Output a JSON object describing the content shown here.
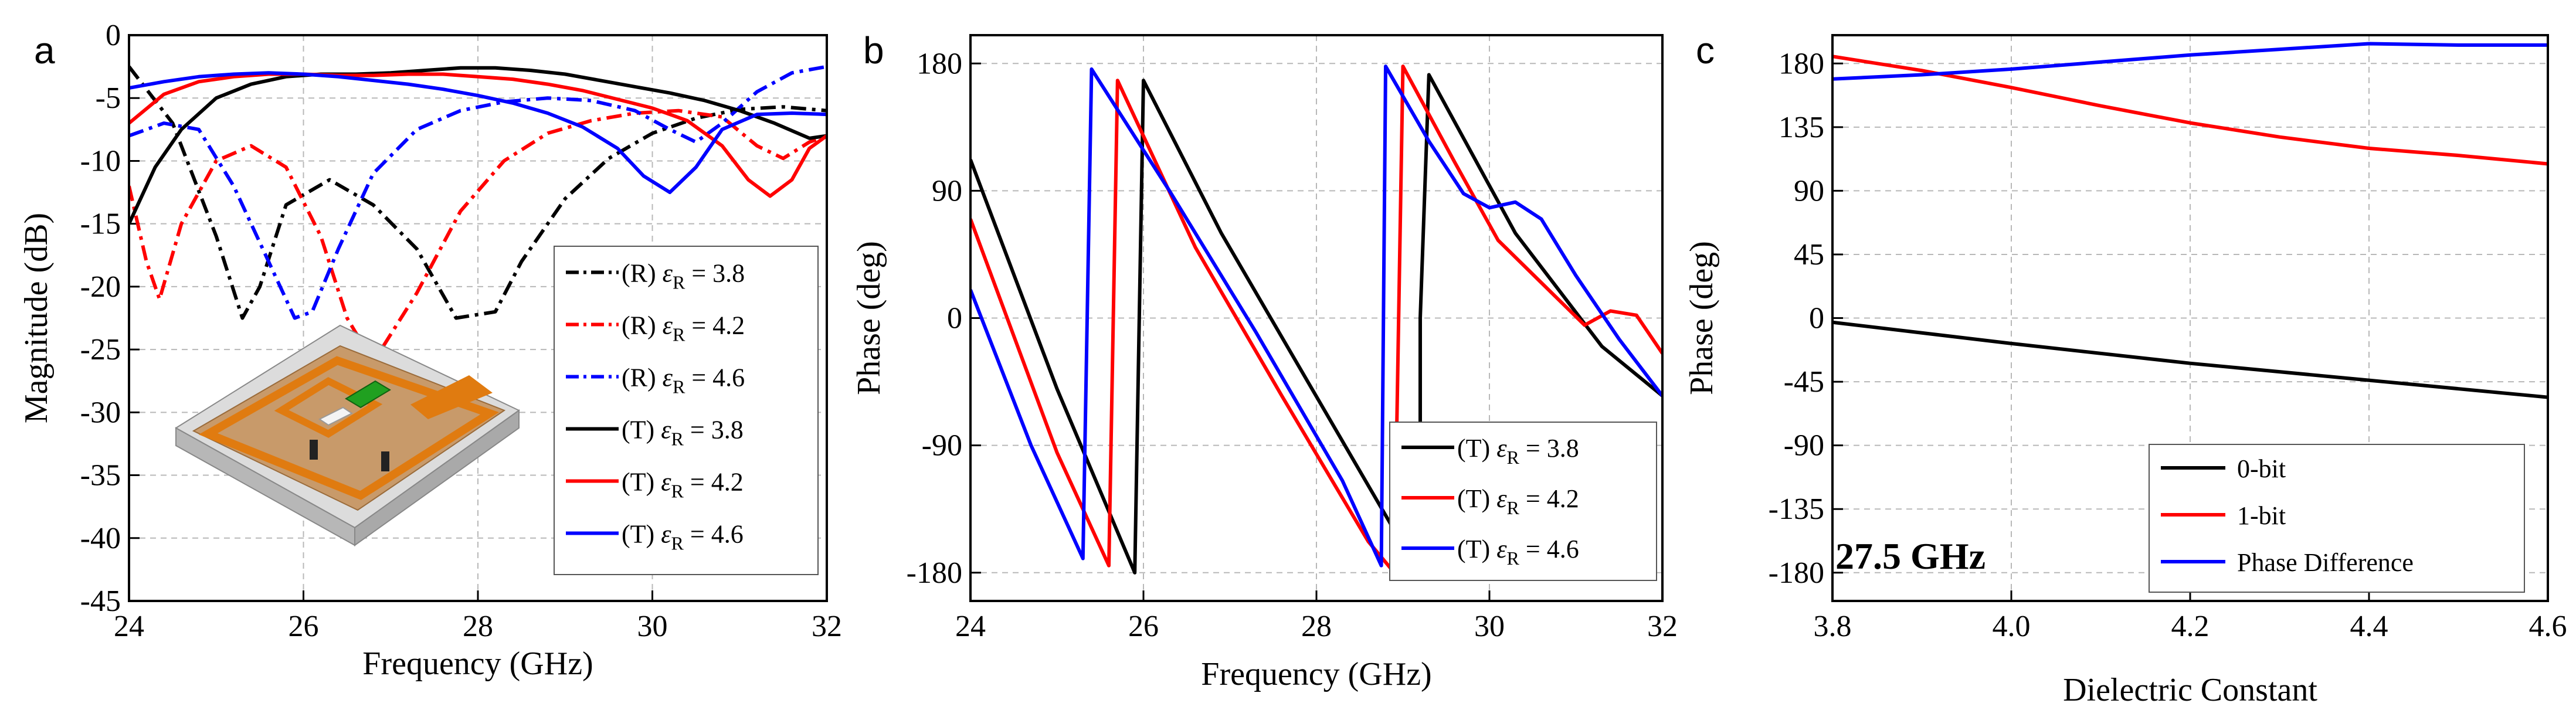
{
  "chart_data": [
    {
      "panel": "a",
      "type": "line",
      "xlabel": "Frequency (GHz)",
      "ylabel": "Magnitude (dB)",
      "xlim": [
        24,
        32
      ],
      "ylim": [
        -45,
        0
      ],
      "xticks": [
        "24",
        "26",
        "28",
        "30",
        "32"
      ],
      "yticks": [
        "0",
        "-5",
        "-10",
        "-15",
        "-20",
        "-25",
        "-30",
        "-35",
        "-40",
        "-45"
      ],
      "grid": true,
      "legend_position": "lower-right",
      "series": [
        {
          "name": "(R) εR = 3.8",
          "label_main": "(R) ",
          "eps_label": "ε",
          "eps_sub": "R",
          "label_value": " = 3.8",
          "color": "#000000",
          "dash": "dashdot",
          "x": [
            24.0,
            24.5,
            25.0,
            25.3,
            25.5,
            25.8,
            26.3,
            26.8,
            27.3,
            27.75,
            28.2,
            28.5,
            29.0,
            29.5,
            30.0,
            30.5,
            31.0,
            31.5,
            32.0
          ],
          "y": [
            -2.5,
            -7.0,
            -16.0,
            -22.5,
            -20.0,
            -13.5,
            -11.5,
            -13.5,
            -17.0,
            -22.5,
            -22.0,
            -18.0,
            -13.0,
            -9.8,
            -7.8,
            -6.6,
            -5.9,
            -5.7,
            -6.0
          ]
        },
        {
          "name": "(R) εR = 4.2",
          "label_main": "(R) ",
          "eps_label": "ε",
          "eps_sub": "R",
          "label_value": " = 4.2",
          "color": "#ff0000",
          "dash": "dashdot",
          "x": [
            24.0,
            24.2,
            24.35,
            24.6,
            25.0,
            25.4,
            25.8,
            26.2,
            26.5,
            26.8,
            27.3,
            27.8,
            28.3,
            28.8,
            29.3,
            29.8,
            30.3,
            30.8,
            31.2,
            31.5,
            31.8,
            32.0
          ],
          "y": [
            -12.0,
            -18.0,
            -21.0,
            -15.0,
            -10.0,
            -8.8,
            -10.5,
            -16.0,
            -22.5,
            -26.0,
            -20.5,
            -14.0,
            -10.0,
            -7.8,
            -6.8,
            -6.2,
            -6.0,
            -6.5,
            -8.8,
            -9.8,
            -8.5,
            -8.0
          ]
        },
        {
          "name": "(R) εR = 4.6",
          "label_main": "(R) ",
          "eps_label": "ε",
          "eps_sub": "R",
          "label_value": " = 4.6",
          "color": "#0000ff",
          "dash": "dashdot",
          "x": [
            24.0,
            24.4,
            24.8,
            25.2,
            25.6,
            25.9,
            26.1,
            26.4,
            26.8,
            27.3,
            27.8,
            28.3,
            28.8,
            29.3,
            29.8,
            30.2,
            30.5,
            30.8,
            31.2,
            31.6,
            32.0
          ],
          "y": [
            -8.0,
            -7.0,
            -7.5,
            -12.0,
            -18.0,
            -22.5,
            -22.0,
            -17.0,
            -11.0,
            -7.5,
            -6.0,
            -5.3,
            -5.0,
            -5.2,
            -6.0,
            -7.5,
            -8.5,
            -7.0,
            -4.5,
            -3.0,
            -2.5
          ]
        },
        {
          "name": "(T) εR = 3.8",
          "label_main": "(T) ",
          "eps_label": "ε",
          "eps_sub": "R",
          "label_value": " = 3.8",
          "color": "#000000",
          "dash": "solid",
          "x": [
            24.0,
            24.3,
            24.6,
            25.0,
            25.4,
            25.8,
            26.2,
            26.6,
            27.0,
            27.4,
            27.8,
            28.2,
            28.6,
            29.0,
            29.4,
            29.8,
            30.2,
            30.6,
            31.0,
            31.4,
            31.8,
            32.0
          ],
          "y": [
            -15.0,
            -10.5,
            -7.5,
            -5.0,
            -3.9,
            -3.3,
            -3.1,
            -3.1,
            -3.0,
            -2.8,
            -2.6,
            -2.6,
            -2.8,
            -3.1,
            -3.6,
            -4.1,
            -4.6,
            -5.2,
            -6.0,
            -7.0,
            -8.2,
            -8.0
          ]
        },
        {
          "name": "(T) εR = 4.2",
          "label_main": "(T) ",
          "eps_label": "ε",
          "eps_sub": "R",
          "label_value": " = 4.2",
          "color": "#ff0000",
          "dash": "solid",
          "x": [
            24.0,
            24.4,
            24.8,
            25.2,
            25.6,
            26.0,
            26.4,
            26.8,
            27.2,
            27.6,
            28.0,
            28.4,
            28.8,
            29.2,
            29.6,
            30.0,
            30.4,
            30.8,
            31.1,
            31.35,
            31.6,
            31.8,
            32.0
          ],
          "y": [
            -7.0,
            -4.7,
            -3.7,
            -3.3,
            -3.1,
            -3.1,
            -3.2,
            -3.2,
            -3.1,
            -3.1,
            -3.3,
            -3.5,
            -3.9,
            -4.4,
            -5.1,
            -5.8,
            -6.8,
            -8.8,
            -11.5,
            -12.8,
            -11.5,
            -9.0,
            -8.0
          ]
        },
        {
          "name": "(T) εR = 4.6",
          "label_main": "(T) ",
          "eps_label": "ε",
          "eps_sub": "R",
          "label_value": " = 4.6",
          "color": "#0000ff",
          "dash": "solid",
          "x": [
            24.0,
            24.4,
            24.8,
            25.2,
            25.6,
            26.0,
            26.4,
            26.8,
            27.2,
            27.6,
            28.0,
            28.4,
            28.8,
            29.2,
            29.6,
            29.9,
            30.2,
            30.5,
            30.8,
            31.2,
            31.6,
            32.0
          ],
          "y": [
            -4.2,
            -3.7,
            -3.3,
            -3.1,
            -3.0,
            -3.1,
            -3.3,
            -3.6,
            -3.9,
            -4.3,
            -4.8,
            -5.4,
            -6.2,
            -7.3,
            -9.0,
            -11.2,
            -12.5,
            -10.5,
            -7.5,
            -6.3,
            -6.2,
            -6.3
          ]
        }
      ]
    },
    {
      "panel": "b",
      "type": "line",
      "xlabel": "Frequency (GHz)",
      "ylabel": "Phase (deg)",
      "xlim": [
        24,
        32
      ],
      "ylim": [
        -200,
        200
      ],
      "xticks": [
        "24",
        "26",
        "28",
        "30",
        "32"
      ],
      "yticks": [
        "180",
        "90",
        "0",
        "-90",
        "-180"
      ],
      "grid": true,
      "legend_position": "lower-right",
      "series": [
        {
          "name": "(T) εR = 3.8",
          "label_main": "(T) ",
          "eps_label": "ε",
          "eps_sub": "R",
          "label_value": " = 3.8",
          "color": "#000000",
          "dash": "solid",
          "x": [
            24.0,
            25.0,
            25.9,
            25.9,
            26.0,
            26.9,
            27.9,
            28.9,
            29.2,
            29.2,
            29.3,
            30.3,
            31.3,
            32.0
          ],
          "y": [
            112,
            -50,
            -180,
            -180,
            168,
            60,
            -45,
            -150,
            -180,
            0,
            172,
            60,
            -20,
            -55
          ]
        },
        {
          "name": "(T) εR = 4.2",
          "label_main": "(T) ",
          "eps_label": "ε",
          "eps_sub": "R",
          "label_value": " = 4.2",
          "color": "#ff0000",
          "dash": "solid",
          "x": [
            24.0,
            25.0,
            25.6,
            25.7,
            26.6,
            27.6,
            28.6,
            28.9,
            29.0,
            29.6,
            30.1,
            30.6,
            31.1,
            31.4,
            31.7,
            32.0
          ],
          "y": [
            70,
            -95,
            -175,
            168,
            50,
            -55,
            -158,
            -180,
            178,
            110,
            55,
            25,
            -5,
            5,
            2,
            -25
          ]
        },
        {
          "name": "(T) εR = 4.6",
          "label_main": "(T) ",
          "eps_label": "ε",
          "eps_sub": "R",
          "label_value": " = 4.6",
          "color": "#0000ff",
          "dash": "solid",
          "x": [
            24.0,
            24.7,
            25.3,
            25.4,
            26.3,
            27.3,
            28.3,
            28.75,
            28.8,
            29.3,
            29.7,
            30.0,
            30.3,
            30.6,
            31.0,
            31.5,
            32.0
          ],
          "y": [
            20,
            -90,
            -170,
            176,
            90,
            -10,
            -115,
            -175,
            178,
            125,
            88,
            78,
            82,
            70,
            30,
            -15,
            -55
          ]
        }
      ]
    },
    {
      "panel": "c",
      "type": "line",
      "xlabel": "Dielectric Constant",
      "ylabel": "Phase (deg)",
      "xlim": [
        3.8,
        4.6
      ],
      "ylim": [
        -200,
        200
      ],
      "xticks": [
        "3.8",
        "4.0",
        "4.2",
        "4.4",
        "4.6"
      ],
      "yticks": [
        "180",
        "135",
        "90",
        "45",
        "0",
        "-45",
        "-90",
        "-135",
        "-180"
      ],
      "grid": true,
      "legend_position": "bottom",
      "annotation": "27.5 GHz",
      "series": [
        {
          "name": "0-bit",
          "color": "#000000",
          "dash": "solid",
          "x": [
            3.8,
            4.0,
            4.2,
            4.4,
            4.6
          ],
          "y": [
            -3,
            -18,
            -32,
            -44,
            -56
          ]
        },
        {
          "name": "1-bit",
          "color": "#ff0000",
          "dash": "solid",
          "x": [
            3.8,
            3.9,
            4.0,
            4.1,
            4.2,
            4.3,
            4.4,
            4.5,
            4.6
          ],
          "y": [
            185,
            175,
            163,
            150,
            138,
            128,
            120,
            115,
            109
          ]
        },
        {
          "name": "Phase Difference",
          "color": "#0000ff",
          "dash": "solid",
          "x": [
            3.8,
            3.9,
            4.0,
            4.1,
            4.2,
            4.3,
            4.4,
            4.5,
            4.6
          ],
          "y": [
            169,
            172,
            176,
            181,
            186,
            190,
            194,
            193,
            193
          ]
        }
      ]
    }
  ],
  "panel_labels": {
    "a": "a",
    "b": "b",
    "c": "c"
  },
  "inset": {
    "icon": "pcb-unit-cell-3d-icon"
  }
}
